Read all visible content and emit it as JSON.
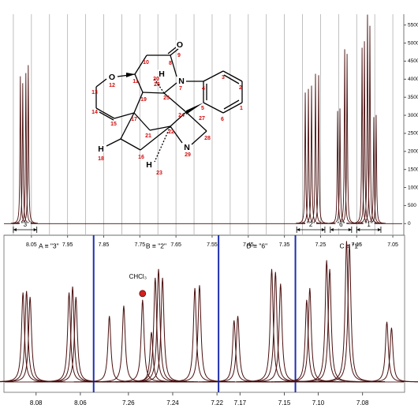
{
  "chart_data": [
    {
      "type": "spectrum",
      "xlim": [
        8.126,
        7.024
      ],
      "xticks": [
        8.05,
        7.95,
        7.85,
        7.75,
        7.65,
        7.55,
        7.45,
        7.35,
        7.25,
        7.15,
        7.05
      ],
      "xminorticks": [
        8.1,
        8.0,
        7.9,
        7.8,
        7.7,
        7.6,
        7.5,
        7.4,
        7.3,
        7.2,
        7.1
      ],
      "ylim": [
        -300,
        5800
      ],
      "yticks": [
        0,
        500,
        1000,
        1500,
        2000,
        2500,
        3000,
        3500,
        4000,
        4500,
        5000,
        5500
      ],
      "grid": true,
      "color": "#4a0f0f",
      "x": [
        8.0806,
        8.074,
        8.0653,
        8.0587,
        7.2923,
        7.2836,
        7.2749,
        7.264,
        7.2553,
        7.2028,
        7.1963,
        7.1832,
        7.1766,
        7.1351,
        7.1286,
        7.1201,
        7.1135,
        7.1026,
        7.0961
      ],
      "values": [
        4080,
        3890,
        4170,
        4390,
        3630,
        3730,
        3820,
        4150,
        4110,
        3120,
        3190,
        4830,
        4700,
        4870,
        5050,
        5790,
        5480,
        2950,
        3010
      ],
      "ranges": [
        {
          "label": "\"3\"",
          "from": 8.1,
          "to": 8.035
        },
        {
          "label": "\"2\"",
          "from": 7.316,
          "to": 7.238
        },
        {
          "label": "\"6\"",
          "from": 7.223,
          "to": 7.164
        },
        {
          "label": "\"1\"",
          "from": 7.15,
          "to": 7.083
        }
      ]
    },
    {
      "type": "spectrum-segments",
      "ylim": [
        -7,
        100
      ],
      "color": "#4a0f0f",
      "separator_color": "#1f2fb0",
      "segments": [
        {
          "label": "A ≡ \"3\"",
          "xlim": [
            8.0945,
            8.054
          ],
          "xticks": [
            8.08,
            8.06
          ],
          "x": [
            8.0859,
            8.0843,
            8.0827,
            8.0651,
            8.0635,
            8.062
          ],
          "values": [
            61,
            62,
            58,
            61,
            65,
            58
          ]
        },
        {
          "label": "B ≡ \"2\"",
          "xlim": [
            7.2757,
            7.2193
          ],
          "xticks": [
            7.26,
            7.24,
            7.22
          ],
          "x": [
            7.2686,
            7.2621,
            7.2536,
            7.2496,
            7.2479,
            7.2464,
            7.2446,
            7.23,
            7.2279
          ],
          "values": [
            45,
            52,
            56,
            34,
            71,
            77,
            71,
            64,
            66
          ],
          "annotation": {
            "text": "CHCl₃",
            "x": 7.2536,
            "color": "#d42020"
          }
        },
        {
          "label": "D ≡ \"6\"",
          "xlim": [
            7.1797,
            7.145
          ],
          "xticks": [
            7.17,
            7.15
          ],
          "x": [
            7.1727,
            7.171,
            7.1557,
            7.154,
            7.1517
          ],
          "values": [
            42,
            45,
            77,
            75,
            67
          ]
        },
        {
          "label": "C ≡ \"1\"",
          "xlim": [
            7.1103,
            7.061
          ],
          "xticks": [
            {
              "value": 7.1,
              "label": "7.10"
            },
            7.08
          ],
          "x": [
            7.1052,
            7.1038,
            7.0962,
            7.0948,
            7.0872,
            7.0859,
            7.069,
            7.0669
          ],
          "values": [
            56,
            64,
            83,
            77,
            96,
            94,
            41,
            37
          ]
        }
      ]
    }
  ],
  "molecule": {
    "atoms": [
      "O",
      "O",
      "N",
      "N",
      "H",
      "H",
      "H"
    ],
    "numbers": [
      "1",
      "2",
      "3",
      "4",
      "5",
      "6",
      "7",
      "8",
      "9",
      "10",
      "11",
      "12",
      "13",
      "14",
      "15",
      "16",
      "17",
      "18",
      "19",
      "20",
      "21",
      "22",
      "23",
      "24",
      "25",
      "26",
      "27",
      "28",
      "29"
    ]
  }
}
